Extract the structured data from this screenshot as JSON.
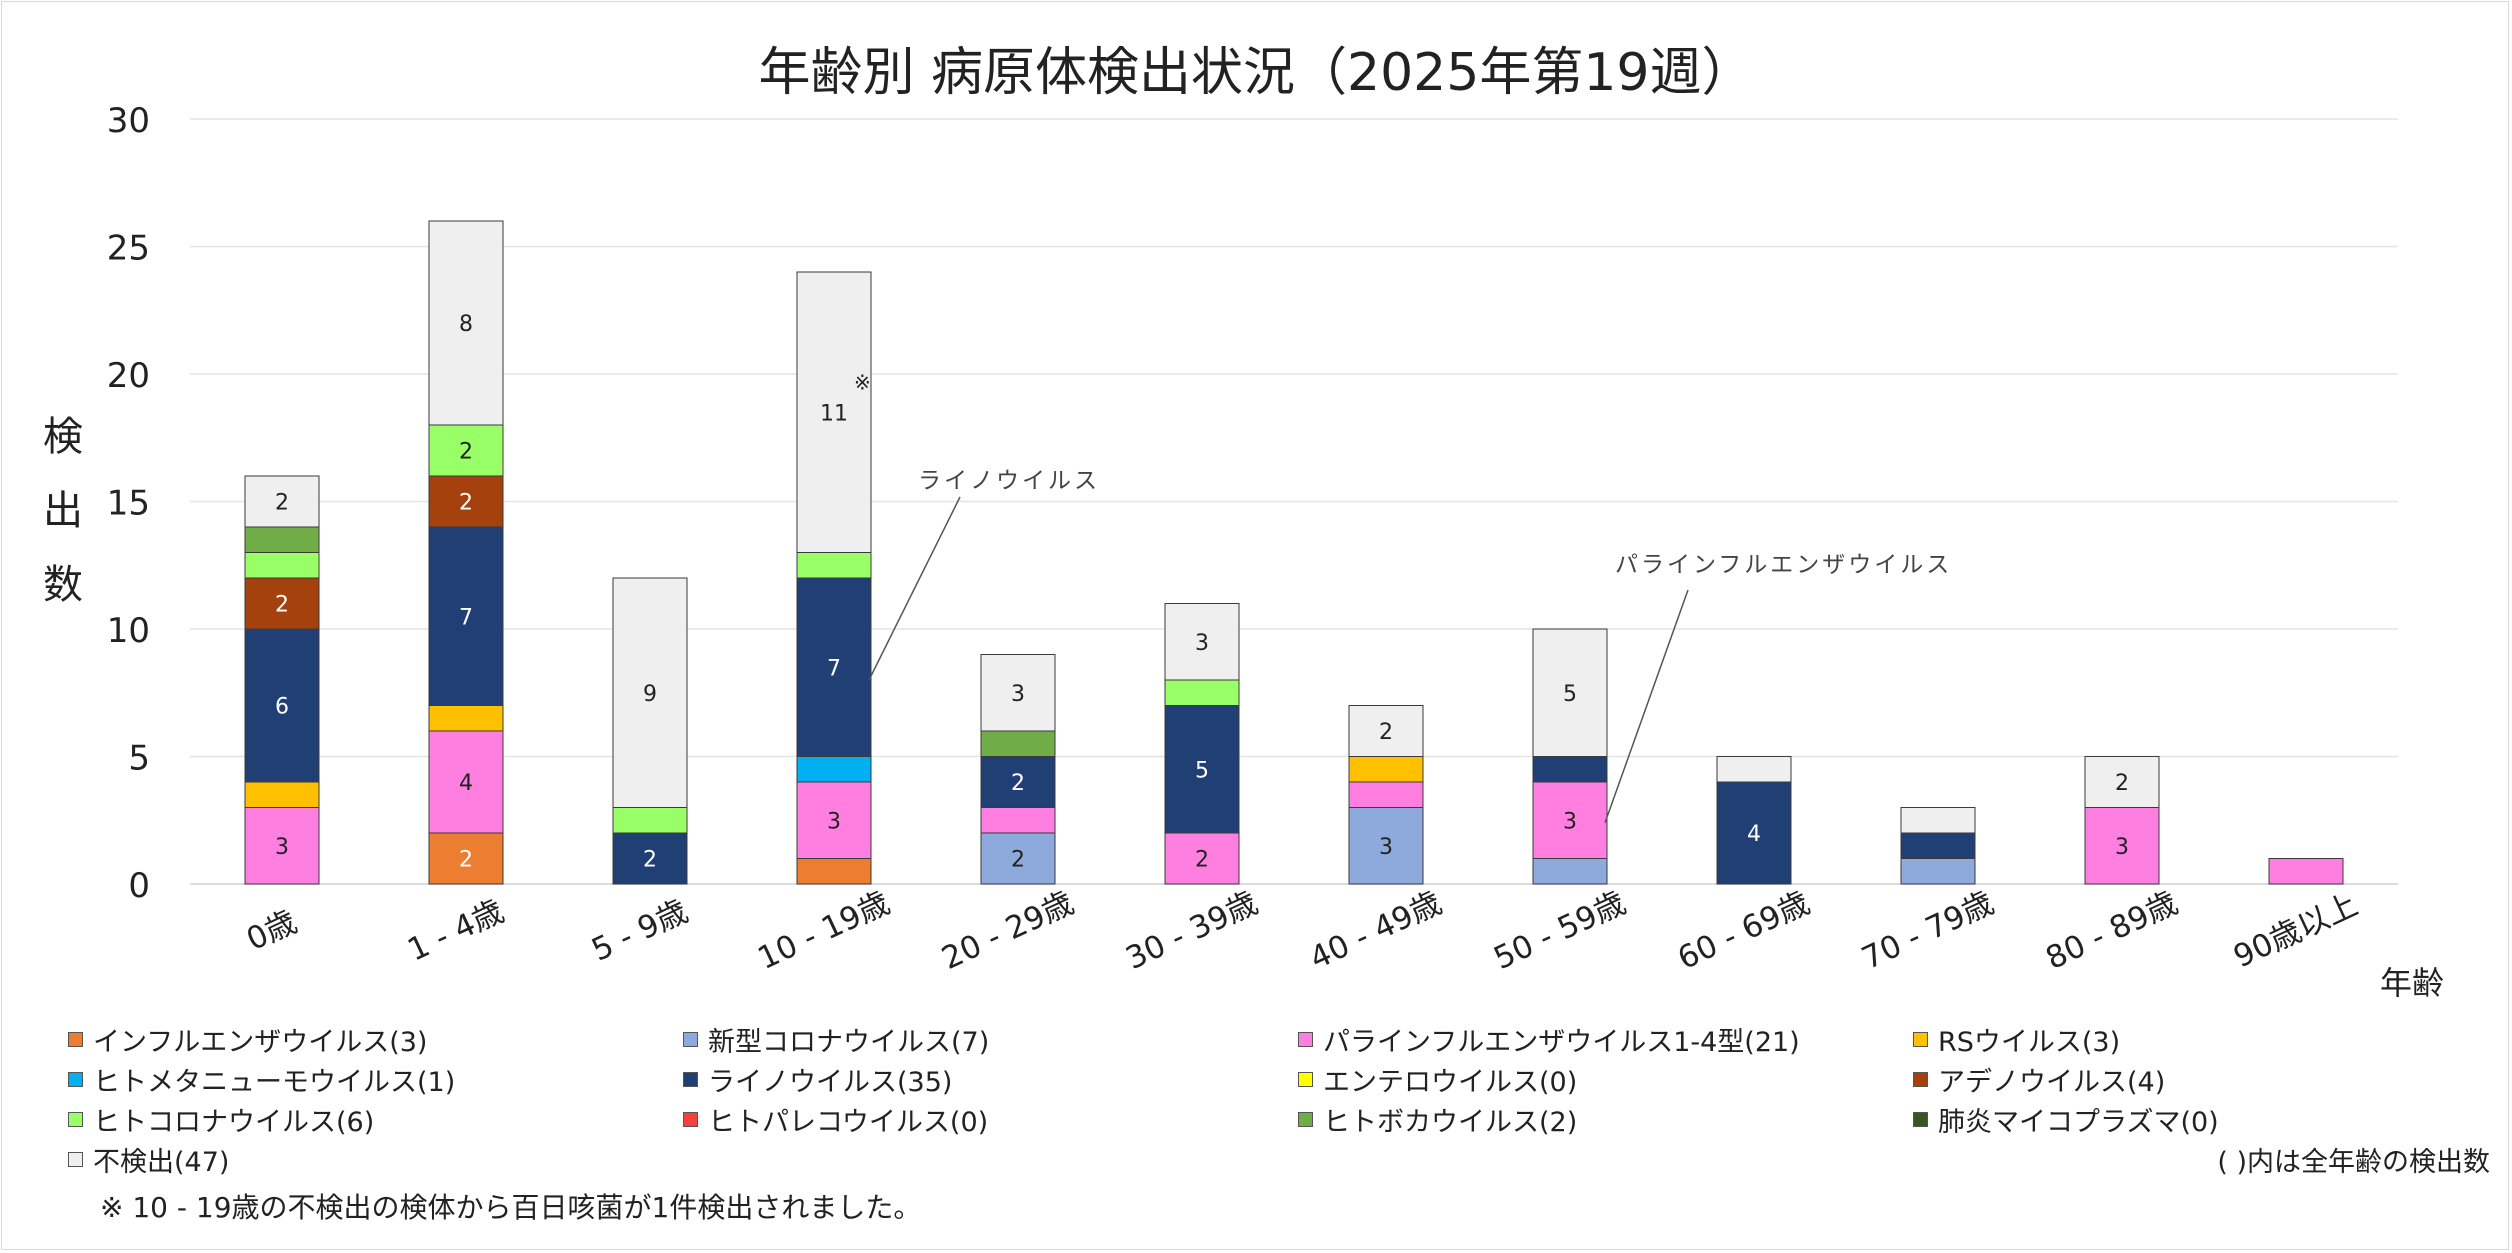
{
  "chart_data": {
    "type": "bar",
    "stacked": true,
    "title": "年齢別 病原体検出状況（2025年第19週）",
    "ylabel": "検出数",
    "xlabel": "年齢",
    "ylim": [
      0,
      30
    ],
    "yticks": [
      0,
      5,
      10,
      15,
      20,
      25,
      30
    ],
    "grid": true,
    "legend_position": "bottom",
    "categories": [
      "0歳",
      "1 - 4歳",
      "5 - 9歳",
      "10 - 19歳",
      "20 - 29歳",
      "30 - 39歳",
      "40 - 49歳",
      "50 - 59歳",
      "60 - 69歳",
      "70 - 79歳",
      "80 - 89歳",
      "90歳以上"
    ],
    "series": [
      {
        "name": "インフルエンザウイルス(3)",
        "color": "#ED7D31",
        "values": [
          0,
          2,
          0,
          1,
          0,
          0,
          0,
          0,
          0,
          0,
          0,
          0
        ]
      },
      {
        "name": "新型コロナウイルス(7)",
        "color": "#8EA9DB",
        "values": [
          0,
          0,
          0,
          0,
          2,
          0,
          3,
          1,
          0,
          1,
          0,
          0
        ]
      },
      {
        "name": "パラインフルエンザウイルス1-4型(21)",
        "color": "#FF7FE0",
        "values": [
          3,
          4,
          0,
          3,
          1,
          2,
          1,
          3,
          0,
          0,
          3,
          1
        ]
      },
      {
        "name": "RSウイルス(3)",
        "color": "#FFC000",
        "values": [
          1,
          1,
          0,
          0,
          0,
          0,
          1,
          0,
          0,
          0,
          0,
          0
        ]
      },
      {
        "name": "ヒトメタニューモウイルス(1)",
        "color": "#00B0F0",
        "values": [
          0,
          0,
          0,
          1,
          0,
          0,
          0,
          0,
          0,
          0,
          0,
          0
        ]
      },
      {
        "name": "ライノウイルス(35)",
        "color": "#203F74",
        "values": [
          6,
          7,
          2,
          7,
          2,
          5,
          0,
          1,
          4,
          1,
          0,
          0
        ]
      },
      {
        "name": "エンテロウイルス(0)",
        "color": "#FFFF00",
        "values": [
          0,
          0,
          0,
          0,
          0,
          0,
          0,
          0,
          0,
          0,
          0,
          0
        ]
      },
      {
        "name": "アデノウイルス(4)",
        "color": "#A5410D",
        "values": [
          2,
          2,
          0,
          0,
          0,
          0,
          0,
          0,
          0,
          0,
          0,
          0
        ]
      },
      {
        "name": "ヒトコロナウイルス(6)",
        "color": "#99FF66",
        "values": [
          1,
          2,
          1,
          1,
          0,
          1,
          0,
          0,
          0,
          0,
          0,
          0
        ]
      },
      {
        "name": "ヒトパレコウイルス(0)",
        "color": "#F04040",
        "values": [
          0,
          0,
          0,
          0,
          0,
          0,
          0,
          0,
          0,
          0,
          0,
          0
        ]
      },
      {
        "name": "ヒトボカウイルス(2)",
        "color": "#70AD47",
        "values": [
          1,
          0,
          0,
          0,
          1,
          0,
          0,
          0,
          0,
          0,
          0,
          0
        ]
      },
      {
        "name": "肺炎マイコプラズマ(0)",
        "color": "#375623",
        "values": [
          0,
          0,
          0,
          0,
          0,
          0,
          0,
          0,
          0,
          0,
          0,
          0
        ]
      },
      {
        "name": "不検出(47)",
        "color": "#EFEFEF",
        "values": [
          2,
          8,
          9,
          11,
          3,
          3,
          2,
          5,
          1,
          1,
          2,
          0
        ]
      }
    ],
    "annotations": [
      {
        "text": "ライノウイルス"
      },
      {
        "text": "パラインフルエンザウイルス"
      },
      {
        "text": "※"
      }
    ],
    "legend_note": "( )内は全年齢の検出数",
    "footnote": "※ 10 - 19歳の不検出の検体から百日咳菌が1件検出されました。"
  }
}
